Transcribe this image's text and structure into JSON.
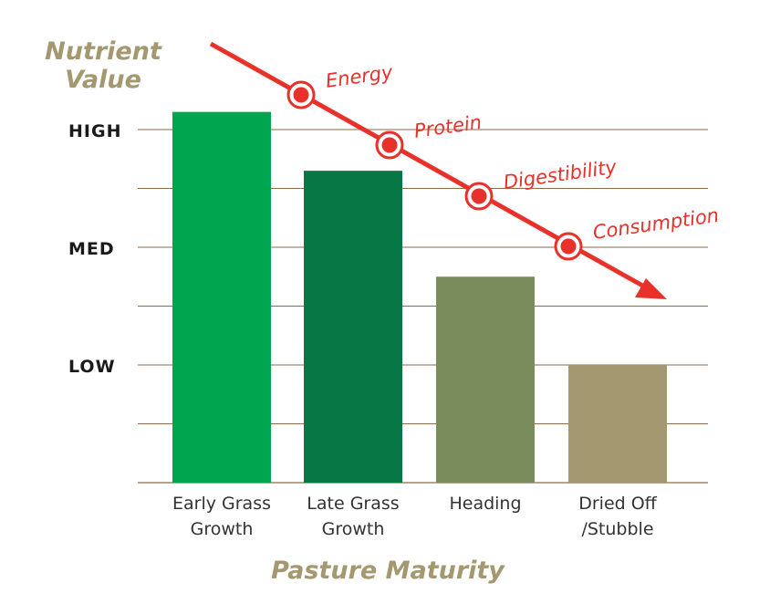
{
  "chart_data": {
    "type": "bar",
    "title": "",
    "ylabel": "Nutrient Value",
    "ylabel_lines": [
      "Nutrient",
      "Value"
    ],
    "xlabel": "Pasture Maturity",
    "categories": [
      [
        "Early Grass",
        "Growth"
      ],
      [
        "Late Grass",
        "Growth"
      ],
      [
        "Heading"
      ],
      [
        "Dried Off",
        "/Stubble"
      ]
    ],
    "values": [
      6.3,
      5.3,
      3.5,
      2.0
    ],
    "ylim": [
      0,
      6
    ],
    "yticks": [
      {
        "value": 2,
        "label": "LOW"
      },
      {
        "value": 4,
        "label": "MED"
      },
      {
        "value": 6,
        "label": "HIGH"
      }
    ],
    "gridlines": [
      1,
      2,
      3,
      4,
      5,
      6
    ],
    "grid": true,
    "bar_colors": [
      "#00a64f",
      "#077746",
      "#7a8c5c",
      "#a39870"
    ],
    "trend_arrow": {
      "direction": "decreasing",
      "color": "#e8312a",
      "markers": [
        "Energy",
        "Protein",
        "Digestibility",
        "Consumption"
      ]
    }
  }
}
